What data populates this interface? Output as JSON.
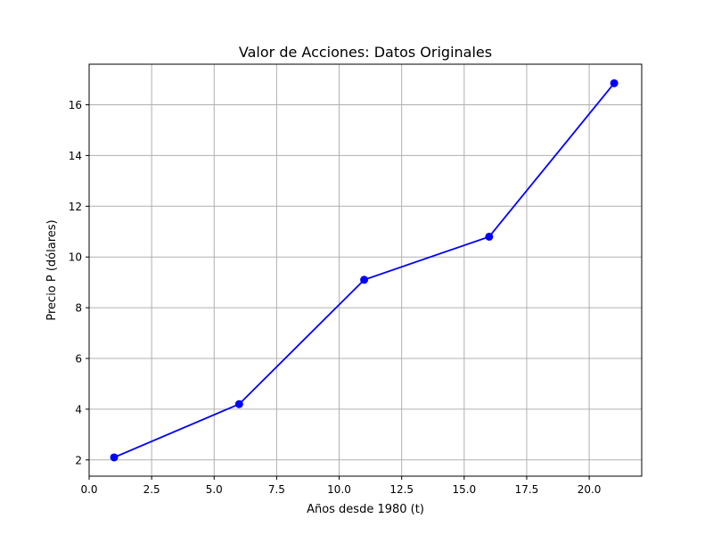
{
  "chart_data": {
    "type": "line",
    "title": "Valor de Acciones: Datos Originales",
    "xlabel": "Años desde 1980 (t)",
    "ylabel": "Precio P (dólares)",
    "x": [
      1,
      6,
      11,
      16,
      21
    ],
    "series": [
      {
        "values": [
          2.1,
          4.2,
          9.1,
          10.8,
          16.85
        ],
        "color": "#0000ff",
        "marker": "circle"
      }
    ],
    "xlim": [
      0,
      22.1
    ],
    "ylim": [
      1.36,
      17.6
    ],
    "xticks": [
      0,
      2.5,
      5,
      7.5,
      10,
      12.5,
      15,
      17.5,
      20
    ],
    "xtick_labels": [
      "0.0",
      "2.5",
      "5.0",
      "7.5",
      "10.0",
      "12.5",
      "15.0",
      "17.5",
      "20.0"
    ],
    "yticks": [
      2,
      4,
      6,
      8,
      10,
      12,
      14,
      16
    ],
    "ytick_labels": [
      "2",
      "4",
      "6",
      "8",
      "10",
      "12",
      "14",
      "16"
    ],
    "grid": true,
    "grid_color": "#b0b0b0"
  }
}
